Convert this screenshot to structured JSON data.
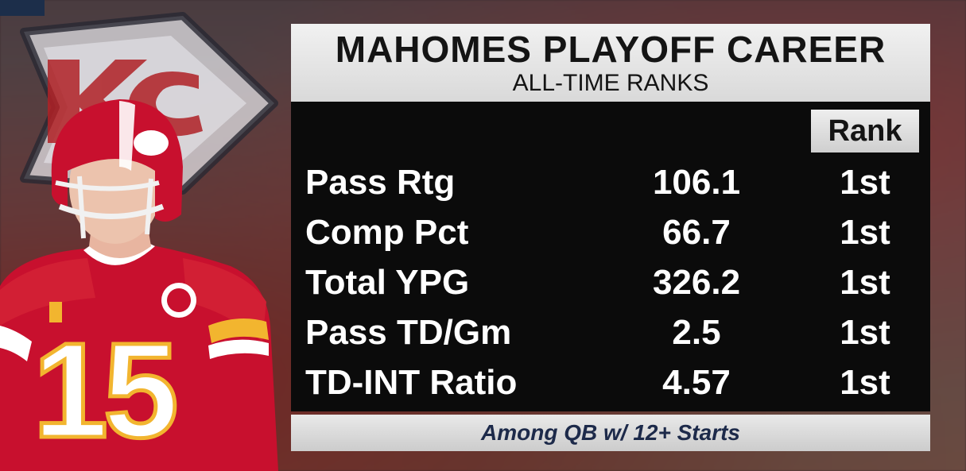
{
  "graphic": {
    "title": "MAHOMES PLAYOFF CAREER",
    "subtitle": "ALL-TIME RANKS",
    "rank_header": "Rank",
    "rows": [
      {
        "label": "Pass Rtg",
        "value": "106.1",
        "rank": "1st"
      },
      {
        "label": "Comp Pct",
        "value": "66.7",
        "rank": "1st"
      },
      {
        "label": "Total YPG",
        "value": "326.2",
        "rank": "1st"
      },
      {
        "label": "Pass TD/Gm",
        "value": "2.5",
        "rank": "1st"
      },
      {
        "label": "TD-INT Ratio",
        "value": "4.57",
        "rank": "1st"
      }
    ],
    "footnote": "Among QB w/ 12+ Starts"
  },
  "player": {
    "jersey_number": "15"
  },
  "colors": {
    "chiefs_red": "#c8102e",
    "chiefs_gold": "#f2b52f",
    "panel_black": "#0b0b0b",
    "header_gray": "#e3e3e3",
    "footnote_navy": "#1d2a4a"
  }
}
